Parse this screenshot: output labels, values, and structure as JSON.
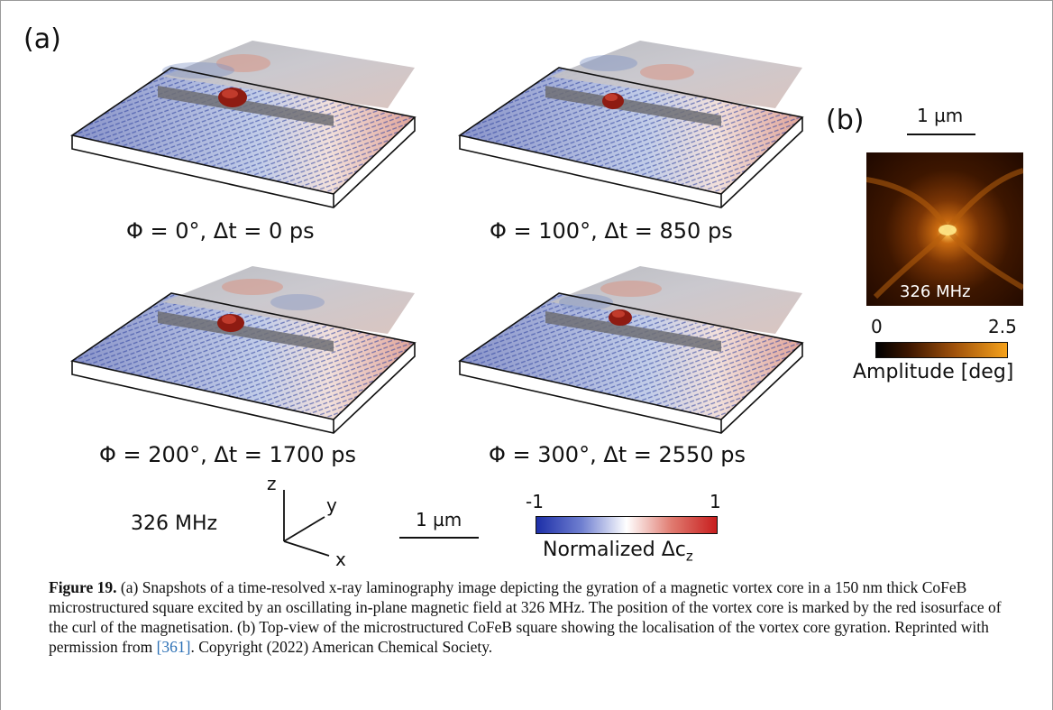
{
  "panel_a": {
    "label": "(a)",
    "snapshots": [
      {
        "caption": "Φ = 0°, Δt = 0 ps"
      },
      {
        "caption": "Φ = 100°, Δt = 850 ps"
      },
      {
        "caption": "Φ = 200°, Δt = 1700 ps"
      },
      {
        "caption": "Φ = 300°, Δt = 2550 ps"
      }
    ],
    "frequency": "326 MHz",
    "axes": {
      "z": "z",
      "y": "y",
      "x": "x"
    },
    "scalebar": "1 µm",
    "colorbar": {
      "min": "-1",
      "max": "1",
      "label": "Normalized Δc",
      "label_sub": "z",
      "colors": [
        "#1d2fa8",
        "#ffffff",
        "#c81e1e"
      ]
    }
  },
  "panel_b": {
    "label": "(b)",
    "scalebar": "1 µm",
    "frequency": "326 MHz",
    "colorbar": {
      "min": "0",
      "max": "2.5",
      "label": "Amplitude [deg]",
      "colors": [
        "#000000",
        "#f6a21b"
      ]
    }
  },
  "caption": {
    "figure_label": "Figure 19.",
    "text": " (a) Snapshots of a time-resolved x-ray laminography image depicting the gyration of a magnetic vortex core in a 150 nm thick CoFeB microstructured square excited by an oscillating in-plane magnetic field at 326 MHz. The position of the vortex core is marked by the red isosurface of the curl of the magnetisation. (b) Top-view of the microstructured CoFeB square showing the localisation of the vortex core gyration. Reprinted with permission from ",
    "ref": "[361]",
    "text_end": ". Copyright (2022) American Chemical Society."
  }
}
